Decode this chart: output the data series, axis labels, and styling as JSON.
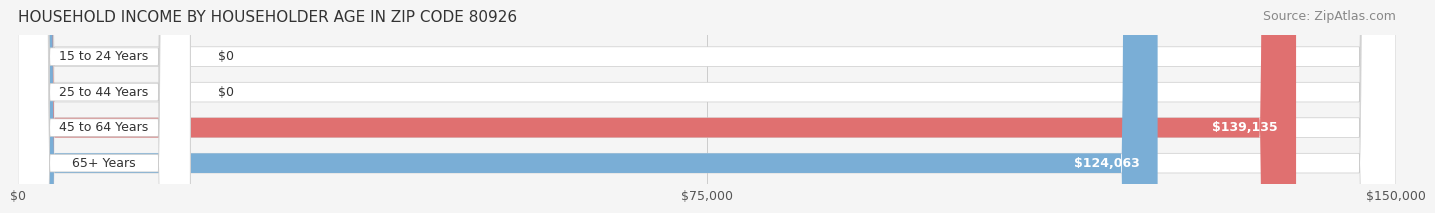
{
  "title": "HOUSEHOLD INCOME BY HOUSEHOLDER AGE IN ZIP CODE 80926",
  "source": "Source: ZipAtlas.com",
  "categories": [
    "15 to 24 Years",
    "25 to 44 Years",
    "45 to 64 Years",
    "65+ Years"
  ],
  "values": [
    0,
    0,
    139135,
    124063
  ],
  "bar_colors": [
    "#f08080",
    "#f5c97a",
    "#e07070",
    "#7aaed6"
  ],
  "label_colors": [
    "#333333",
    "#333333",
    "#ffffff",
    "#ffffff"
  ],
  "bar_labels": [
    "$0",
    "$0",
    "$139,135",
    "$124,063"
  ],
  "xlim": [
    0,
    150000
  ],
  "xticks": [
    0,
    75000,
    150000
  ],
  "xtick_labels": [
    "$0",
    "$75,000",
    "$150,000"
  ],
  "background_color": "#f5f5f5",
  "bar_height": 0.55,
  "title_fontsize": 11,
  "source_fontsize": 9,
  "label_fontsize": 9,
  "tick_fontsize": 9,
  "category_fontsize": 9
}
